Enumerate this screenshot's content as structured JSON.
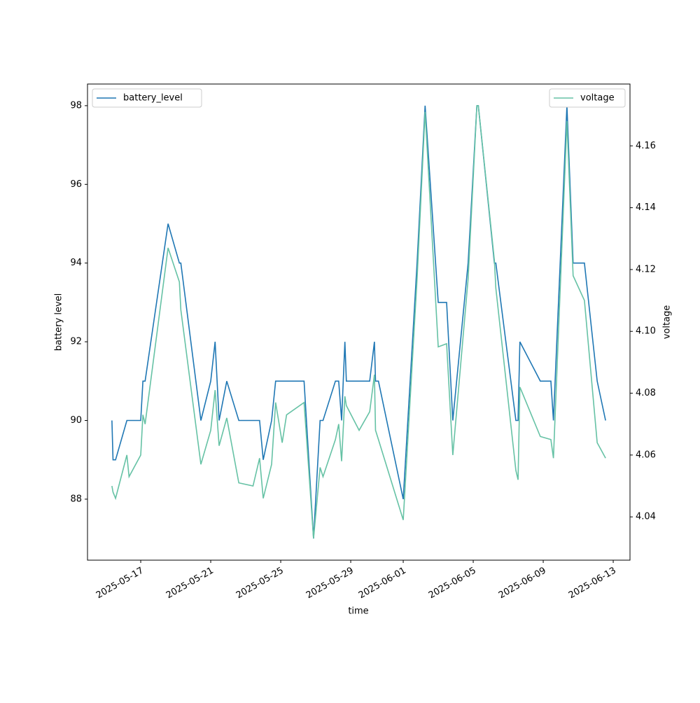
{
  "chart_data": {
    "type": "line",
    "xlabel": "time",
    "ylabel": "battery level",
    "y2label": "voltage",
    "x": [
      "2025-05-15 08:30",
      "2025-05-15 10:00",
      "2025-05-15 13:30",
      "2025-05-16 05:00",
      "2025-05-16 08:00",
      "2025-05-17 00:00",
      "2025-05-17 03:00",
      "2025-05-17 06:00",
      "2025-05-18 13:30",
      "2025-05-19 05:00",
      "2025-05-19 07:00",
      "2025-05-20 10:30",
      "2025-05-21 00:00",
      "2025-05-21 06:00",
      "2025-05-21 11:30",
      "2025-05-21 22:00",
      "2025-05-22 14:30",
      "2025-05-23 10:00",
      "2025-05-23 19:00",
      "2025-05-24 00:00",
      "2025-05-24 11:30",
      "2025-05-24 17:00",
      "2025-05-25 02:00",
      "2025-05-25 08:00",
      "2025-05-26 08:00",
      "2025-05-26 21:00",
      "2025-05-27 06:00",
      "2025-05-27 10:00",
      "2025-05-28 03:00",
      "2025-05-28 07:30",
      "2025-05-28 11:30",
      "2025-05-28 16:00",
      "2025-05-28 18:00",
      "2025-05-29 11:30",
      "2025-05-30 02:00",
      "2025-05-30 08:30",
      "2025-05-30 10:00",
      "2025-05-30 14:00",
      "2025-06-01 00:00",
      "2025-06-01 19:00",
      "2025-06-02 06:00",
      "2025-06-03 00:00",
      "2025-06-03 11:30",
      "2025-06-03 20:00",
      "2025-06-04 17:00",
      "2025-06-05 05:00",
      "2025-06-05 07:00",
      "2025-06-06 05:00",
      "2025-06-06 07:00",
      "2025-06-07 10:30",
      "2025-06-07 13:30",
      "2025-06-07 16:00",
      "2025-06-08 20:00",
      "2025-06-09 10:30",
      "2025-06-09 14:00",
      "2025-06-10 08:30",
      "2025-06-10 17:00",
      "2025-06-11 08:30",
      "2025-06-12 02:00",
      "2025-06-12 13:30"
    ],
    "series": [
      {
        "name": "battery_level",
        "color": "#1f77b4",
        "legend": "upper left",
        "values": [
          90,
          89,
          89,
          90,
          90,
          90,
          91,
          91,
          95,
          94,
          94,
          90,
          91,
          92,
          90,
          91,
          90,
          90,
          90,
          89,
          90,
          91,
          91,
          91,
          91,
          87,
          90,
          90,
          91,
          91,
          90,
          92,
          91,
          91,
          91,
          92,
          91,
          91,
          88,
          94,
          98,
          93,
          93,
          90,
          94,
          98,
          98,
          94,
          94,
          90,
          90,
          92,
          91,
          91,
          90,
          98,
          94,
          94,
          91,
          90
        ]
      },
      {
        "name": "voltage",
        "color": "#66c2a5",
        "legend": "upper right",
        "axis": "y2",
        "values": [
          4.05,
          4.048,
          4.046,
          4.06,
          4.053,
          4.06,
          4.073,
          4.07,
          4.127,
          4.116,
          4.107,
          4.057,
          4.068,
          4.081,
          4.063,
          4.072,
          4.051,
          4.05,
          4.059,
          4.046,
          4.057,
          4.077,
          4.064,
          4.073,
          4.077,
          4.033,
          4.056,
          4.053,
          4.065,
          4.07,
          4.058,
          4.079,
          4.076,
          4.068,
          4.074,
          4.086,
          4.068,
          4.065,
          4.039,
          4.117,
          4.171,
          4.095,
          4.096,
          4.06,
          4.117,
          4.173,
          4.173,
          4.123,
          4.114,
          4.055,
          4.052,
          4.082,
          4.066,
          4.065,
          4.059,
          4.168,
          4.118,
          4.11,
          4.064,
          4.059
        ]
      }
    ],
    "xlim": [
      "2025-05-13 23:00",
      "2025-06-13 23:00"
    ],
    "xticks": [
      "2025-05-17",
      "2025-05-21",
      "2025-05-25",
      "2025-05-29",
      "2025-06-01",
      "2025-06-05",
      "2025-06-09",
      "2025-06-13"
    ],
    "ylim": [
      86.45,
      98.55
    ],
    "yticks": [
      88,
      90,
      92,
      94,
      96,
      98
    ],
    "y2lim": [
      4.026,
      4.18
    ],
    "y2ticks": [
      4.04,
      4.06,
      4.08,
      {
        "value": 4.1,
        "label": "4.10"
      },
      4.12,
      4.14,
      4.16
    ]
  }
}
